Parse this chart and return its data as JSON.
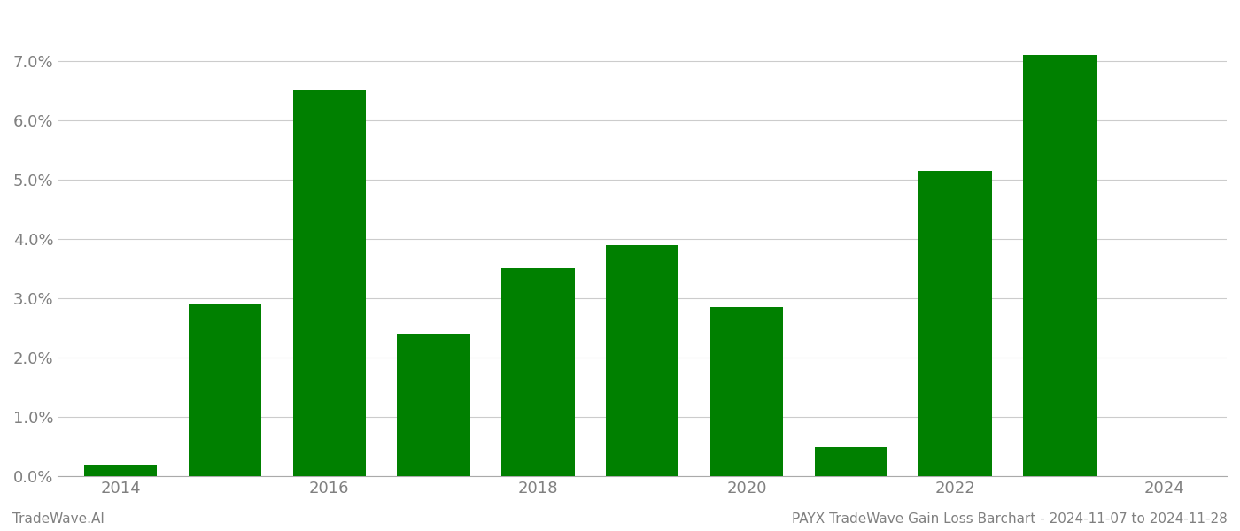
{
  "years": [
    2014,
    2015,
    2016,
    2017,
    2018,
    2019,
    2020,
    2021,
    2022,
    2023
  ],
  "values": [
    0.002,
    0.029,
    0.065,
    0.024,
    0.035,
    0.039,
    0.0285,
    0.005,
    0.0515,
    0.071
  ],
  "bar_color": "#008000",
  "background_color": "#ffffff",
  "grid_color": "#cccccc",
  "footer_left": "TradeWave.AI",
  "footer_right": "PAYX TradeWave Gain Loss Barchart - 2024-11-07 to 2024-11-28",
  "footer_fontsize": 11,
  "tick_label_color": "#808080",
  "xlim": [
    2013.4,
    2024.6
  ],
  "ylim": [
    0,
    0.078
  ],
  "yticks": [
    0.0,
    0.01,
    0.02,
    0.03,
    0.04,
    0.05,
    0.06,
    0.07
  ],
  "xticks": [
    2014,
    2016,
    2018,
    2020,
    2022,
    2024
  ],
  "bar_width": 0.7
}
